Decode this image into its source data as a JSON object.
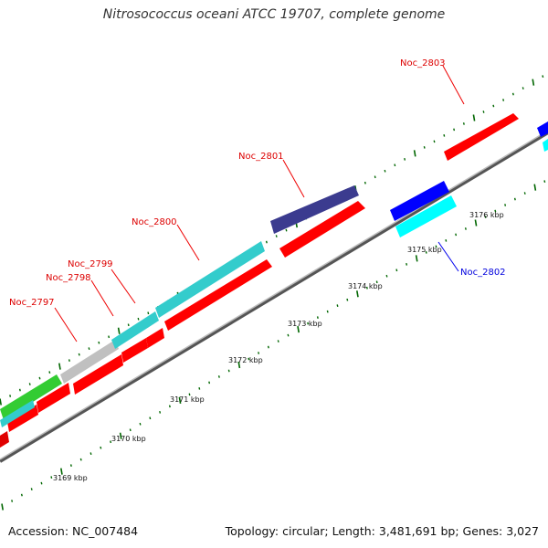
{
  "title": "Nitrosococcus oceani ATCC 19707, complete genome",
  "footer": {
    "accession": "Accession: NC_007484",
    "stats": "Topology: circular; Length: 3,481,691 bp; Genes: 3,027"
  },
  "colors": {
    "forward_gene_red": "#ff0000",
    "cyan": "#33cccc",
    "bright_cyan": "#00ffff",
    "gray": "#c0c0c0",
    "green": "#33cc33",
    "dark_slate": "#3b3b8f",
    "blue": "#0000ff",
    "backbone": "#999999",
    "tick_green": "#006600",
    "label_red": "#dd0000",
    "label_blue": "#0000dd"
  },
  "kbp_labels": [
    "3169 kbp",
    "3170 kbp",
    "3171 kbp",
    "3172 kbp",
    "3173 kbp",
    "3174 kbp",
    "3175 kbp",
    "3176 kbp"
  ],
  "gene_labels": {
    "noc_2797": "Noc_2797",
    "noc_2798": "Noc_2798",
    "noc_2799": "Noc_2799",
    "noc_2800": "Noc_2800",
    "noc_2801": "Noc_2801",
    "noc_2802": "Noc_2802",
    "noc_2803": "Noc_2803"
  }
}
